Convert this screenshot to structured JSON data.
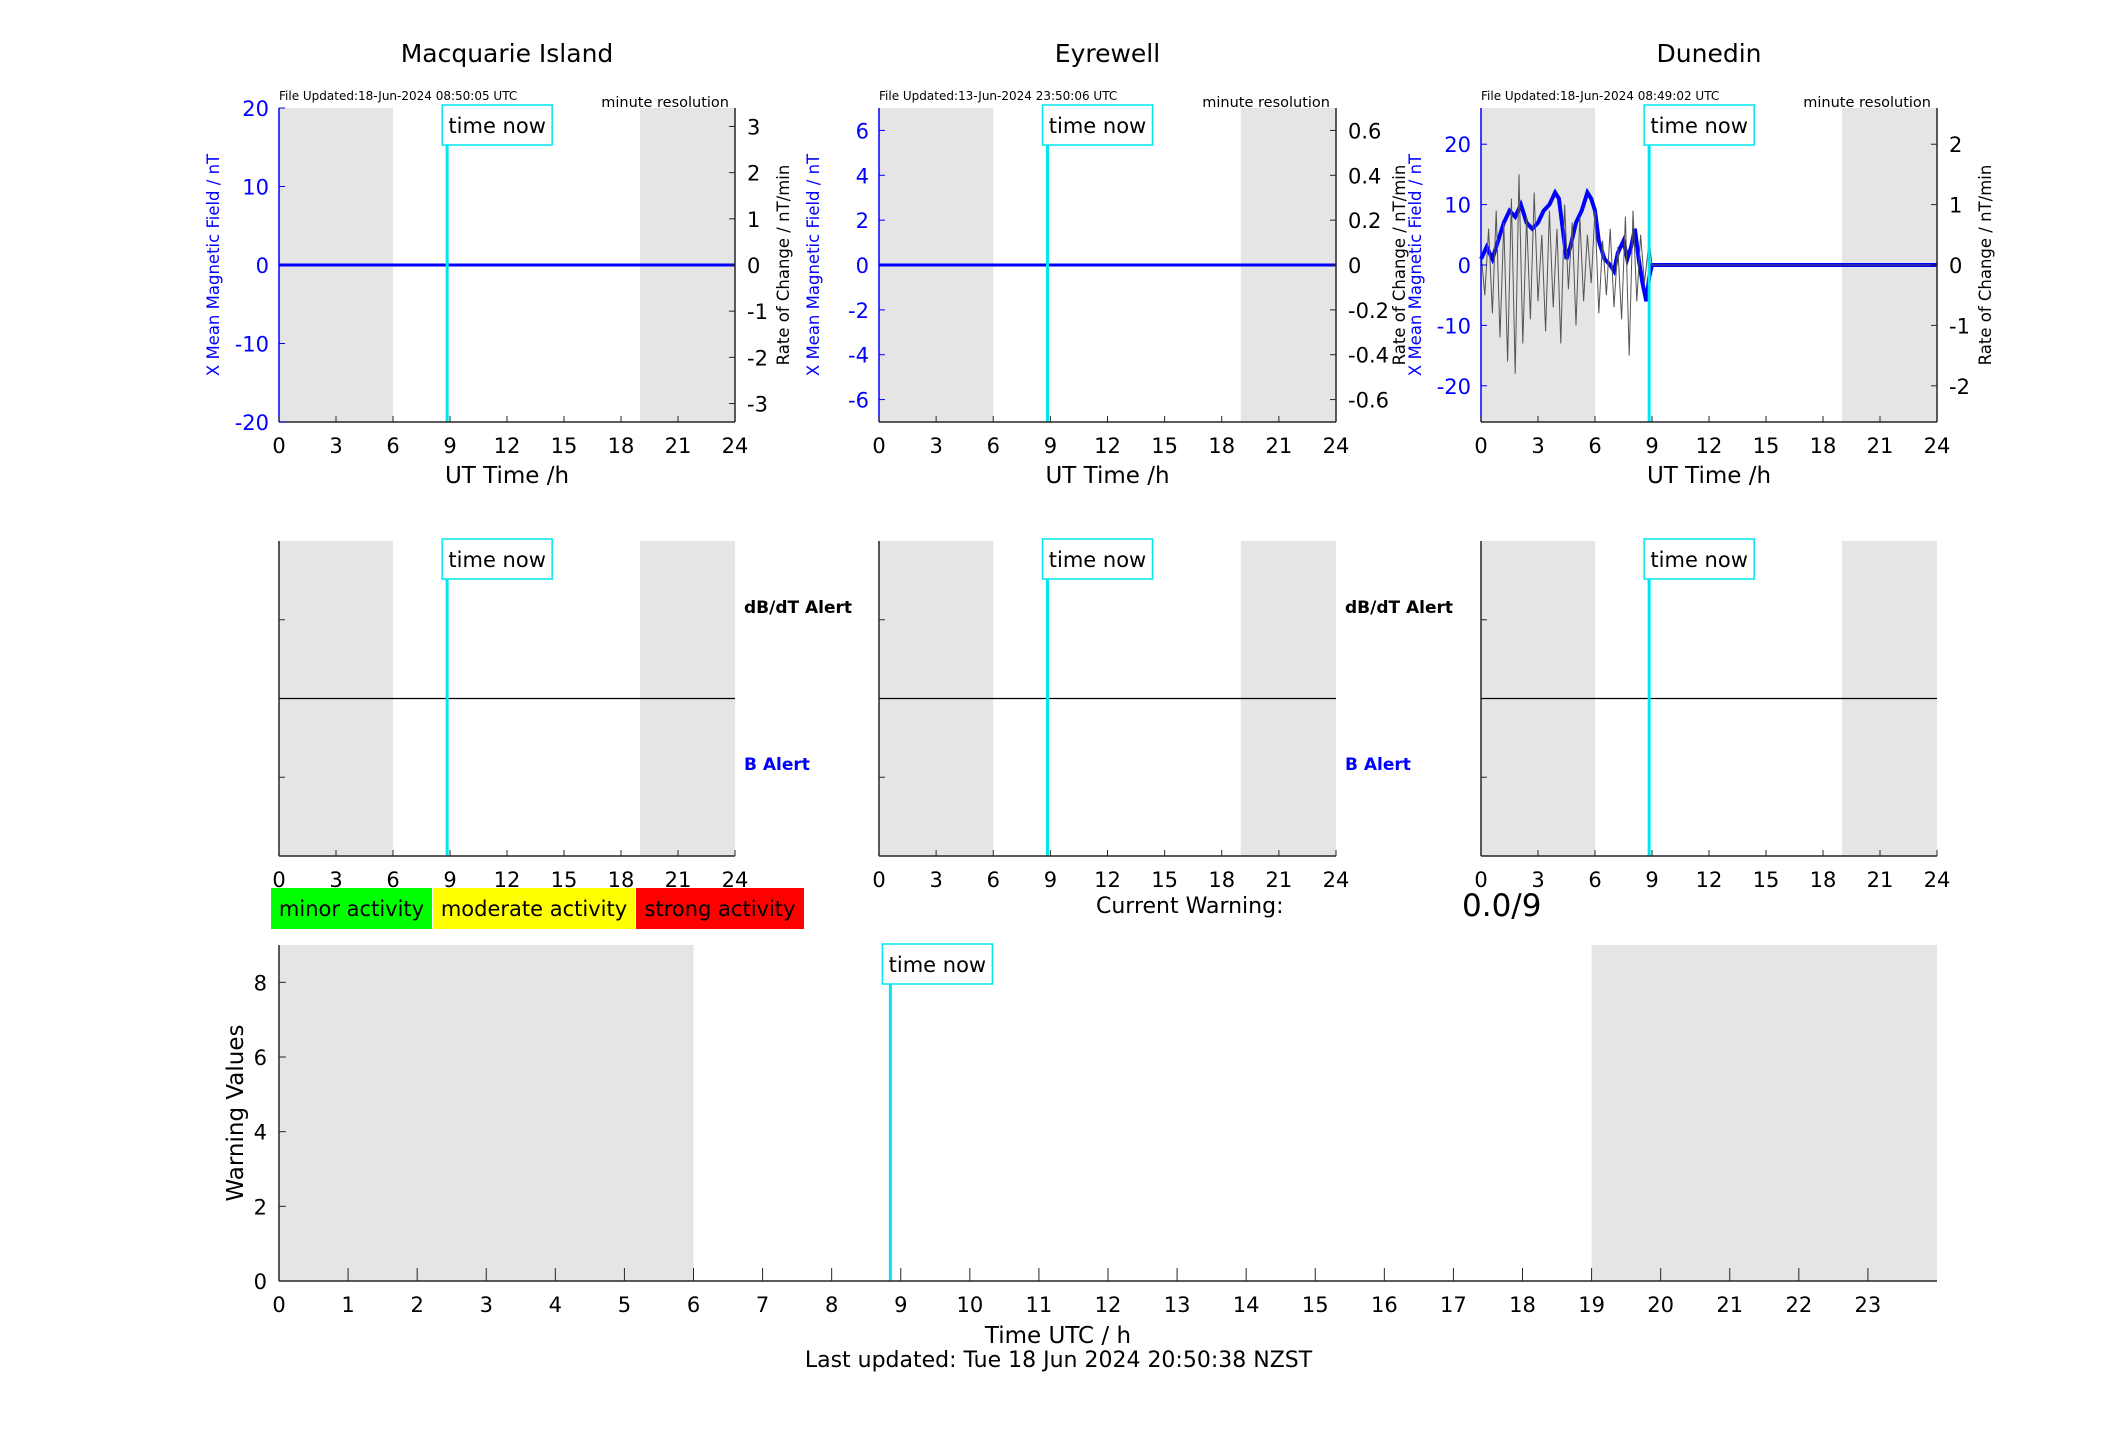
{
  "page": {
    "last_updated": "Last updated: Tue 18 Jun 2024 20:50:38 NZST",
    "current_warning_label": "Current Warning:",
    "current_warning_value": "0.0/9"
  },
  "common": {
    "time_now_label": "time now",
    "time_now_hour": 8.85,
    "night_shading": [
      [
        0,
        6
      ],
      [
        19,
        24
      ]
    ],
    "resolution_label": "minute resolution",
    "ut_xlabel": "UT Time /h",
    "x_ticks": [
      0,
      3,
      6,
      9,
      12,
      15,
      18,
      21,
      24
    ],
    "alert_upper_label": "dB/dT Alert",
    "alert_lower_label": "B Alert",
    "colors": {
      "field": "#0000ff",
      "rate": "#555555",
      "time_now": "#00e5ee",
      "shade": "#e5e5e5",
      "axis": "#262626"
    }
  },
  "legend": [
    {
      "label": "minor activity",
      "color": "#00ff00"
    },
    {
      "label": "moderate activity",
      "color": "#ffff00"
    },
    {
      "label": "strong activity",
      "color": "#ff0000"
    }
  ],
  "chart_data": [
    {
      "type": "line",
      "title": "Macquarie Island",
      "file_updated": "File Updated:18-Jun-2024 08:50:05 UTC",
      "ylabel": "X Mean Magnetic Field / nT",
      "ylabel_right": "Rate of Change / nT/min",
      "ylim": [
        -20,
        20
      ],
      "yticks": [
        "20",
        "10",
        "0",
        "-10",
        "-20"
      ],
      "ytick_values": [
        20,
        10,
        0,
        -10,
        -20
      ],
      "ylim_right": [
        -3.4,
        3.4
      ],
      "yticks_right": [
        "3",
        "2",
        "1",
        "0",
        "-1",
        "-2",
        "-3"
      ],
      "ytick_right_values": [
        3,
        2,
        1,
        0,
        -1,
        -2,
        -3
      ],
      "xlim": [
        0,
        24
      ],
      "series": [
        {
          "values": [
            [
              0,
              0
            ],
            [
              24,
              0
            ]
          ]
        }
      ]
    },
    {
      "type": "line",
      "title": "Eyrewell",
      "file_updated": "File Updated:13-Jun-2024 23:50:06 UTC",
      "ylabel": "X Mean Magnetic Field / nT",
      "ylabel_right": "",
      "ylim": [
        -7,
        7
      ],
      "yticks": [
        "6",
        "4",
        "2",
        "0",
        "-2",
        "-4",
        "-6"
      ],
      "ytick_values": [
        6,
        4,
        2,
        0,
        -2,
        -4,
        -6
      ],
      "ylim_right": [
        -0.7,
        0.7
      ],
      "yticks_right": [
        "0.6",
        "0.4",
        "0.2",
        "0",
        "-0.2",
        "-0.4",
        "-0.6"
      ],
      "ytick_right_values": [
        0.6,
        0.4,
        0.2,
        0,
        -0.2,
        -0.4,
        -0.6
      ],
      "xlim": [
        0,
        24
      ],
      "series": [
        {
          "values": [
            [
              0,
              0
            ],
            [
              24,
              0
            ]
          ]
        }
      ]
    },
    {
      "type": "line",
      "title": "Dunedin",
      "file_updated": "File Updated:18-Jun-2024 08:49:02 UTC",
      "ylabel": "X Mean Magnetic Field / nT",
      "ylabel_overlap": "Rate of Change / nT/min",
      "ylabel_right": "Rate of Change / nT/min",
      "ylim": [
        -26,
        26
      ],
      "yticks": [
        "20",
        "10",
        "0",
        "-10",
        "-20"
      ],
      "ytick_values": [
        20,
        10,
        0,
        -10,
        -20
      ],
      "ylim_right": [
        -2.6,
        2.6
      ],
      "yticks_right": [
        "2",
        "1",
        "0",
        "-1",
        "-2"
      ],
      "ytick_right_values": [
        2,
        1,
        0,
        -1,
        -2
      ],
      "xlim": [
        0,
        24
      ],
      "series": [
        {
          "values": [
            [
              0,
              1
            ],
            [
              0.3,
              3
            ],
            [
              0.6,
              1
            ],
            [
              0.9,
              4
            ],
            [
              1.2,
              7
            ],
            [
              1.5,
              9
            ],
            [
              1.8,
              8
            ],
            [
              2.1,
              10
            ],
            [
              2.4,
              7
            ],
            [
              2.7,
              6
            ],
            [
              3.0,
              7
            ],
            [
              3.3,
              9
            ],
            [
              3.6,
              10
            ],
            [
              3.9,
              12
            ],
            [
              4.1,
              11
            ],
            [
              4.3,
              6
            ],
            [
              4.5,
              1
            ],
            [
              4.7,
              3
            ],
            [
              5.0,
              7
            ],
            [
              5.3,
              9
            ],
            [
              5.6,
              12
            ],
            [
              5.8,
              11
            ],
            [
              6.0,
              9
            ],
            [
              6.2,
              4
            ],
            [
              6.5,
              1
            ],
            [
              6.8,
              0
            ],
            [
              7.0,
              -1
            ],
            [
              7.2,
              2
            ],
            [
              7.5,
              4
            ],
            [
              7.7,
              1
            ],
            [
              7.9,
              3
            ],
            [
              8.1,
              6
            ],
            [
              8.3,
              1
            ],
            [
              8.5,
              -3
            ],
            [
              8.7,
              -6
            ],
            [
              8.85,
              -2
            ],
            [
              9.0,
              0
            ],
            [
              24,
              0
            ]
          ]
        },
        {
          "values": [
            [
              0,
              0.2
            ],
            [
              0.2,
              -0.5
            ],
            [
              0.4,
              0.6
            ],
            [
              0.6,
              -0.8
            ],
            [
              0.8,
              0.9
            ],
            [
              1.0,
              -1.2
            ],
            [
              1.2,
              0.7
            ],
            [
              1.4,
              -1.6
            ],
            [
              1.6,
              1.1
            ],
            [
              1.8,
              -1.8
            ],
            [
              2.0,
              1.5
            ],
            [
              2.2,
              -1.3
            ],
            [
              2.4,
              0.8
            ],
            [
              2.6,
              -0.9
            ],
            [
              2.8,
              1.2
            ],
            [
              3.0,
              -0.6
            ],
            [
              3.2,
              0.5
            ],
            [
              3.4,
              -1.1
            ],
            [
              3.6,
              0.9
            ],
            [
              3.8,
              -0.7
            ],
            [
              4.0,
              0.6
            ],
            [
              4.2,
              -1.3
            ],
            [
              4.4,
              1.0
            ],
            [
              4.6,
              -0.4
            ],
            [
              4.8,
              0.7
            ],
            [
              5.0,
              -1.0
            ],
            [
              5.2,
              0.8
            ],
            [
              5.4,
              -0.6
            ],
            [
              5.6,
              0.5
            ],
            [
              5.8,
              -0.3
            ],
            [
              6.0,
              0.9
            ],
            [
              6.2,
              -0.8
            ],
            [
              6.4,
              0.4
            ],
            [
              6.6,
              -0.5
            ],
            [
              6.8,
              0.6
            ],
            [
              7.0,
              -0.7
            ],
            [
              7.2,
              0.3
            ],
            [
              7.4,
              -0.9
            ],
            [
              7.6,
              0.8
            ],
            [
              7.8,
              -1.5
            ],
            [
              8.0,
              0.9
            ],
            [
              8.2,
              -0.6
            ],
            [
              8.4,
              0.5
            ],
            [
              8.6,
              -0.3
            ],
            [
              8.85,
              0.4
            ],
            [
              9.0,
              0
            ],
            [
              24,
              0
            ]
          ]
        }
      ]
    },
    {
      "type": "line",
      "alert_panel": "Macquarie Island",
      "xlim": [
        0,
        24
      ],
      "series": [
        {
          "values": [
            [
              0,
              0
            ],
            [
              24,
              0
            ]
          ]
        }
      ]
    },
    {
      "type": "line",
      "alert_panel": "Eyrewell",
      "xlim": [
        0,
        24
      ],
      "series": [
        {
          "values": [
            [
              0,
              0
            ],
            [
              24,
              0
            ]
          ]
        }
      ]
    },
    {
      "type": "line",
      "alert_panel": "Dunedin",
      "xlim": [
        0,
        24
      ],
      "series": [
        {
          "values": [
            [
              0,
              0
            ],
            [
              24,
              0
            ]
          ]
        }
      ]
    },
    {
      "type": "bar",
      "xlabel": "Time UTC / h",
      "ylabel": "Warning Values",
      "xlim": [
        0,
        24
      ],
      "ylim": [
        0,
        9
      ],
      "x_ticks": [
        0,
        1,
        2,
        3,
        4,
        5,
        6,
        7,
        8,
        9,
        10,
        11,
        12,
        13,
        14,
        15,
        16,
        17,
        18,
        19,
        20,
        21,
        22,
        23
      ],
      "y_ticks": [
        0,
        2,
        4,
        6,
        8
      ],
      "values": []
    }
  ]
}
